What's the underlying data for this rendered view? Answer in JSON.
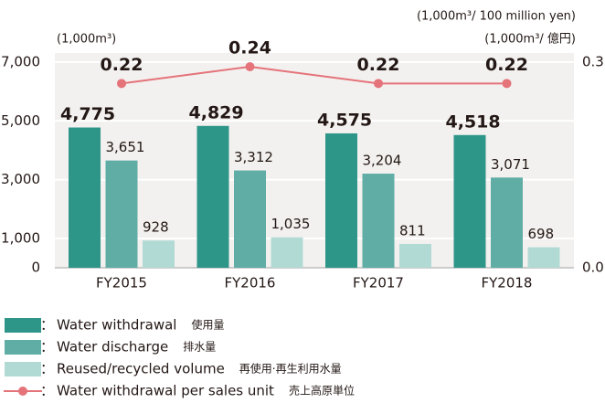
{
  "chart_data": {
    "type": "bar",
    "categories": [
      "FY2015",
      "FY2016",
      "FY2017",
      "FY2018"
    ],
    "series": [
      {
        "name": "Water withdrawal",
        "name_ja": "使用量",
        "color": "#2e9589",
        "values": [
          4775,
          4829,
          4575,
          4518
        ],
        "value_labels": [
          "4,775",
          "4,829",
          "4,575",
          "4,518"
        ]
      },
      {
        "name": "Water discharge",
        "name_ja": "排水量",
        "color": "#5fada5",
        "values": [
          3651,
          3312,
          3204,
          3071
        ],
        "value_labels": [
          "3,651",
          "3,312",
          "3,204",
          "3,071"
        ]
      },
      {
        "name": "Reused/recycled volume",
        "name_ja": "再使用·再生利用水量",
        "color": "#b2dad5",
        "values": [
          928,
          1035,
          811,
          698
        ],
        "value_labels": [
          "928",
          "1,035",
          "811",
          "698"
        ]
      },
      {
        "name": "Water withdrawal per sales unit",
        "name_ja": "売上高原単位",
        "color": "#e4737a",
        "type": "line",
        "axis": "y2",
        "values": [
          0.22,
          0.24,
          0.22,
          0.22
        ]
      }
    ],
    "ylim": [
      0,
      7000
    ],
    "yticks": [
      0,
      {
        "value": 1000,
        "label": "1,000"
      },
      {
        "value": 3000,
        "label": "3,000"
      },
      {
        "value": 5000,
        "label": "5,000"
      },
      {
        "value": 7000,
        "label": "7,000"
      }
    ],
    "y2lim": [
      0,
      0.3
    ],
    "y2ticks": [
      {
        "value": 0,
        "label": "0.0"
      },
      0.3
    ],
    "y_unit": "(1,000m³)",
    "y2_unit": "(1,000m³/ 100 million yen)",
    "y2_unit_ja": "(1,000m³/ 億円)",
    "legend_separator": "：",
    "grid": true
  }
}
